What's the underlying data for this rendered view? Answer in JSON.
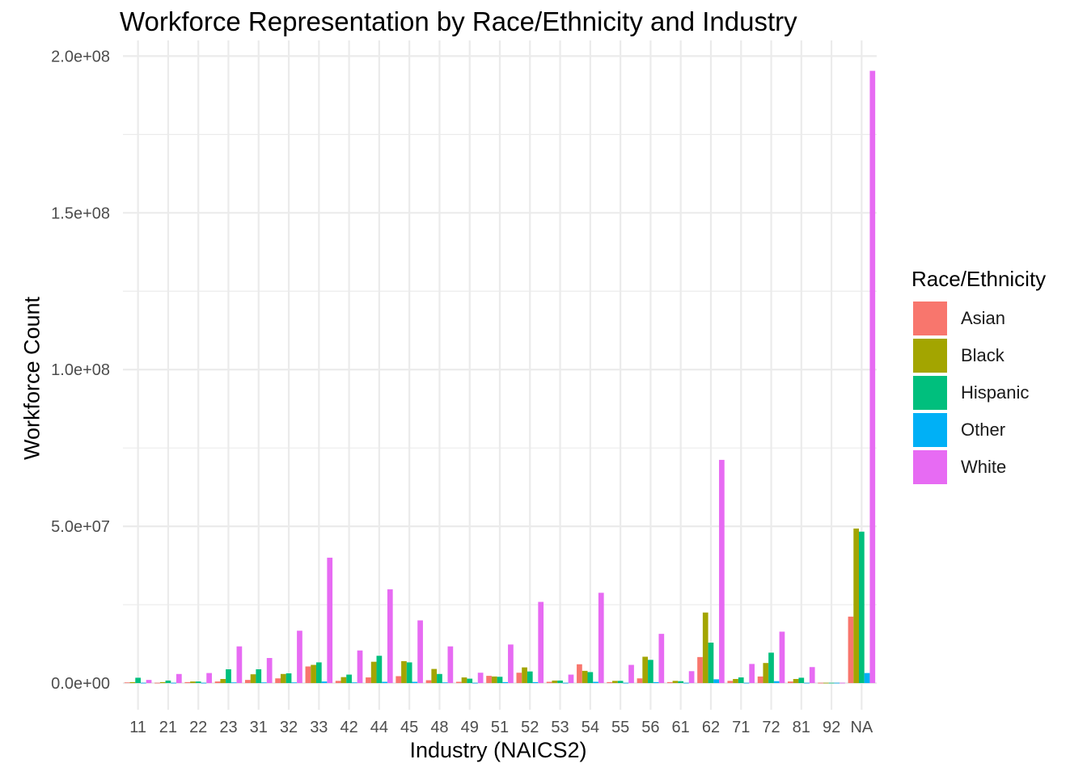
{
  "chart_data": {
    "type": "bar",
    "title": "Workforce Representation by Race/Ethnicity and Industry",
    "xlabel": "Industry (NAICS2)",
    "ylabel": "Workforce Count",
    "legend_title": "Race/Ethnicity",
    "legend_position": "right",
    "grid": true,
    "ylim": [
      -8500000,
      205000000
    ],
    "yticks": [
      0,
      50000000,
      100000000,
      150000000,
      200000000
    ],
    "ytick_labels": [
      "0.0e+00",
      "5.0e+07",
      "1.0e+08",
      "1.5e+08",
      "2.0e+08"
    ],
    "categories": [
      "11",
      "21",
      "22",
      "23",
      "31",
      "32",
      "33",
      "42",
      "44",
      "45",
      "48",
      "49",
      "51",
      "52",
      "53",
      "54",
      "55",
      "56",
      "61",
      "62",
      "71",
      "72",
      "81",
      "92",
      "NA"
    ],
    "series": [
      {
        "name": "Asian",
        "color": "#F8766D",
        "values": [
          200000,
          100000,
          300000,
          500000,
          1000000,
          1500000,
          5300000,
          700000,
          1800000,
          2200000,
          900000,
          400000,
          2300000,
          3300000,
          400000,
          6000000,
          300000,
          1500000,
          300000,
          8300000,
          700000,
          2100000,
          500000,
          100000,
          21200000
        ]
      },
      {
        "name": "Black",
        "color": "#A3A500",
        "values": [
          300000,
          300000,
          500000,
          1300000,
          2800000,
          2900000,
          5800000,
          1900000,
          6800000,
          7000000,
          4500000,
          1800000,
          2100000,
          5000000,
          800000,
          3900000,
          700000,
          8400000,
          700000,
          22500000,
          1300000,
          6400000,
          1300000,
          100000,
          49300000
        ]
      },
      {
        "name": "Hispanic",
        "color": "#00BF7D",
        "values": [
          1700000,
          800000,
          500000,
          4400000,
          4400000,
          3100000,
          6600000,
          2700000,
          8700000,
          6600000,
          2900000,
          1400000,
          2000000,
          3700000,
          800000,
          3500000,
          700000,
          7400000,
          600000,
          12900000,
          1800000,
          9700000,
          1700000,
          100000,
          48300000
        ]
      },
      {
        "name": "Other",
        "color": "#00B0F6",
        "values": [
          100000,
          100000,
          100000,
          200000,
          200000,
          200000,
          500000,
          200000,
          400000,
          400000,
          200000,
          100000,
          300000,
          300000,
          100000,
          400000,
          100000,
          300000,
          100000,
          1200000,
          100000,
          600000,
          100000,
          100000,
          3200000
        ]
      },
      {
        "name": "White",
        "color": "#E76BF3",
        "values": [
          1000000,
          2900000,
          3200000,
          11700000,
          8000000,
          16700000,
          40000000,
          10400000,
          29900000,
          20000000,
          11700000,
          3300000,
          12300000,
          25900000,
          2700000,
          28800000,
          5800000,
          15700000,
          3800000,
          71200000,
          6100000,
          16400000,
          5100000,
          100000,
          195300000
        ]
      }
    ]
  }
}
